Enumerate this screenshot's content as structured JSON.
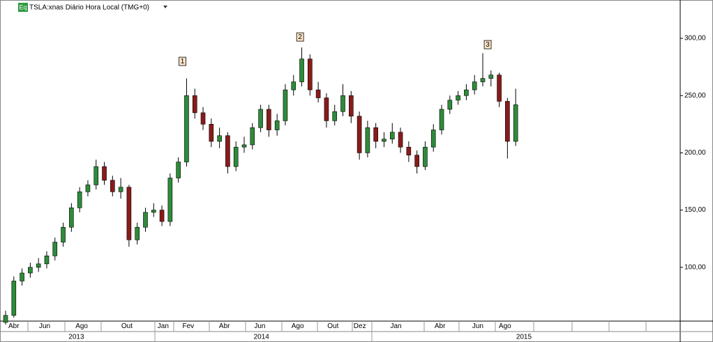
{
  "header": {
    "badge": "Eq",
    "title": "TSLA:xnas Diário Hora Local (TMG+0)"
  },
  "chart_data": {
    "type": "candlestick",
    "categories": [
      null,
      null,
      null,
      null,
      null,
      null,
      null,
      null,
      null,
      null,
      null,
      null,
      null,
      null,
      null,
      null,
      null,
      null,
      null,
      null,
      null,
      null,
      null,
      null,
      null,
      null,
      null,
      null,
      null,
      null,
      null,
      null,
      null,
      null,
      null,
      null,
      null,
      null,
      null,
      null,
      null,
      null,
      null,
      null,
      null,
      null,
      null,
      null,
      null,
      null,
      null,
      null,
      null,
      null,
      null,
      null,
      null,
      null,
      null,
      null,
      null,
      null,
      null
    ],
    "open": [
      52,
      58,
      88,
      95,
      100,
      103,
      110,
      122,
      135,
      152,
      166,
      172,
      188,
      176,
      166,
      170,
      124,
      135,
      148,
      150,
      140,
      178,
      192,
      250,
      235,
      225,
      210,
      215,
      188,
      205,
      207,
      222,
      238,
      220,
      228,
      255,
      262,
      282,
      255,
      248,
      228,
      236,
      250,
      232,
      200,
      222,
      210,
      212,
      218,
      205,
      198,
      188,
      205,
      220,
      238,
      246,
      250,
      255,
      262,
      265,
      268,
      245,
      210
    ],
    "high": [
      62,
      92,
      99,
      104,
      108,
      114,
      126,
      139,
      156,
      170,
      176,
      194,
      192,
      180,
      178,
      172,
      139,
      152,
      156,
      154,
      182,
      196,
      265,
      256,
      240,
      230,
      222,
      218,
      210,
      214,
      226,
      242,
      242,
      234,
      260,
      268,
      292,
      286,
      262,
      252,
      242,
      260,
      254,
      236,
      228,
      226,
      218,
      226,
      222,
      210,
      202,
      210,
      225,
      242,
      250,
      254,
      260,
      268,
      287,
      272,
      270,
      248,
      256
    ],
    "low": [
      50,
      56,
      84,
      91,
      96,
      99,
      106,
      118,
      131,
      148,
      162,
      168,
      172,
      162,
      160,
      118,
      120,
      131,
      144,
      136,
      136,
      174,
      188,
      230,
      220,
      205,
      204,
      182,
      184,
      200,
      203,
      218,
      214,
      215,
      224,
      250,
      258,
      250,
      244,
      222,
      224,
      232,
      226,
      194,
      196,
      204,
      205,
      208,
      200,
      192,
      182,
      185,
      201,
      216,
      234,
      242,
      246,
      251,
      258,
      258,
      240,
      195,
      206
    ],
    "close": [
      58,
      88,
      95,
      100,
      103,
      110,
      122,
      135,
      152,
      166,
      172,
      188,
      176,
      166,
      170,
      124,
      135,
      148,
      150,
      140,
      178,
      192,
      250,
      235,
      225,
      210,
      215,
      188,
      205,
      207,
      222,
      238,
      220,
      228,
      255,
      262,
      282,
      255,
      248,
      228,
      236,
      250,
      232,
      200,
      222,
      210,
      212,
      218,
      205,
      198,
      188,
      205,
      220,
      238,
      246,
      250,
      255,
      262,
      265,
      268,
      245,
      210,
      242
    ],
    "up_color": "#2e8b3a",
    "down_color": "#8b1a1a",
    "xlim": [
      -0.68,
      82
    ],
    "ylim": [
      53,
      333.5
    ],
    "yticks": [
      {
        "value": 100,
        "label": "100,00"
      },
      {
        "value": 150,
        "label": "150,00"
      },
      {
        "value": 200,
        "label": "200,00"
      },
      {
        "value": 250,
        "label": "250,00"
      },
      {
        "value": 300,
        "label": "300,00"
      }
    ],
    "xticks": [
      {
        "value": 1.0,
        "label": "Abr"
      },
      {
        "value": 4.75,
        "label": "Jun"
      },
      {
        "value": 9.25,
        "label": "Ago"
      },
      {
        "value": 14.75,
        "label": "Out"
      },
      {
        "value": 19.15,
        "label": "Jan"
      },
      {
        "value": 22.2,
        "label": "Fev"
      },
      {
        "value": 26.6,
        "label": "Abr"
      },
      {
        "value": 30.9,
        "label": "Jun"
      },
      {
        "value": 35.5,
        "label": "Ago"
      },
      {
        "value": 39.8,
        "label": "Out"
      },
      {
        "value": 43.05,
        "label": "Dez"
      },
      {
        "value": 47.45,
        "label": "Jan"
      },
      {
        "value": 52.8,
        "label": "Abr"
      },
      {
        "value": 57.4,
        "label": "Jun"
      },
      {
        "value": 60.7,
        "label": "Ago"
      }
    ],
    "year_ticks": [
      {
        "value": 8.6,
        "label": "2013"
      },
      {
        "value": 31.1,
        "label": "2014"
      },
      {
        "value": 63,
        "label": "2015"
      }
    ],
    "annotations": [
      {
        "text": "1",
        "x": 21.5,
        "y": 279.9
      },
      {
        "text": "2",
        "x": 35.8,
        "y": 301.2
      },
      {
        "text": "3",
        "x": 58.6,
        "y": 294.5
      }
    ]
  }
}
